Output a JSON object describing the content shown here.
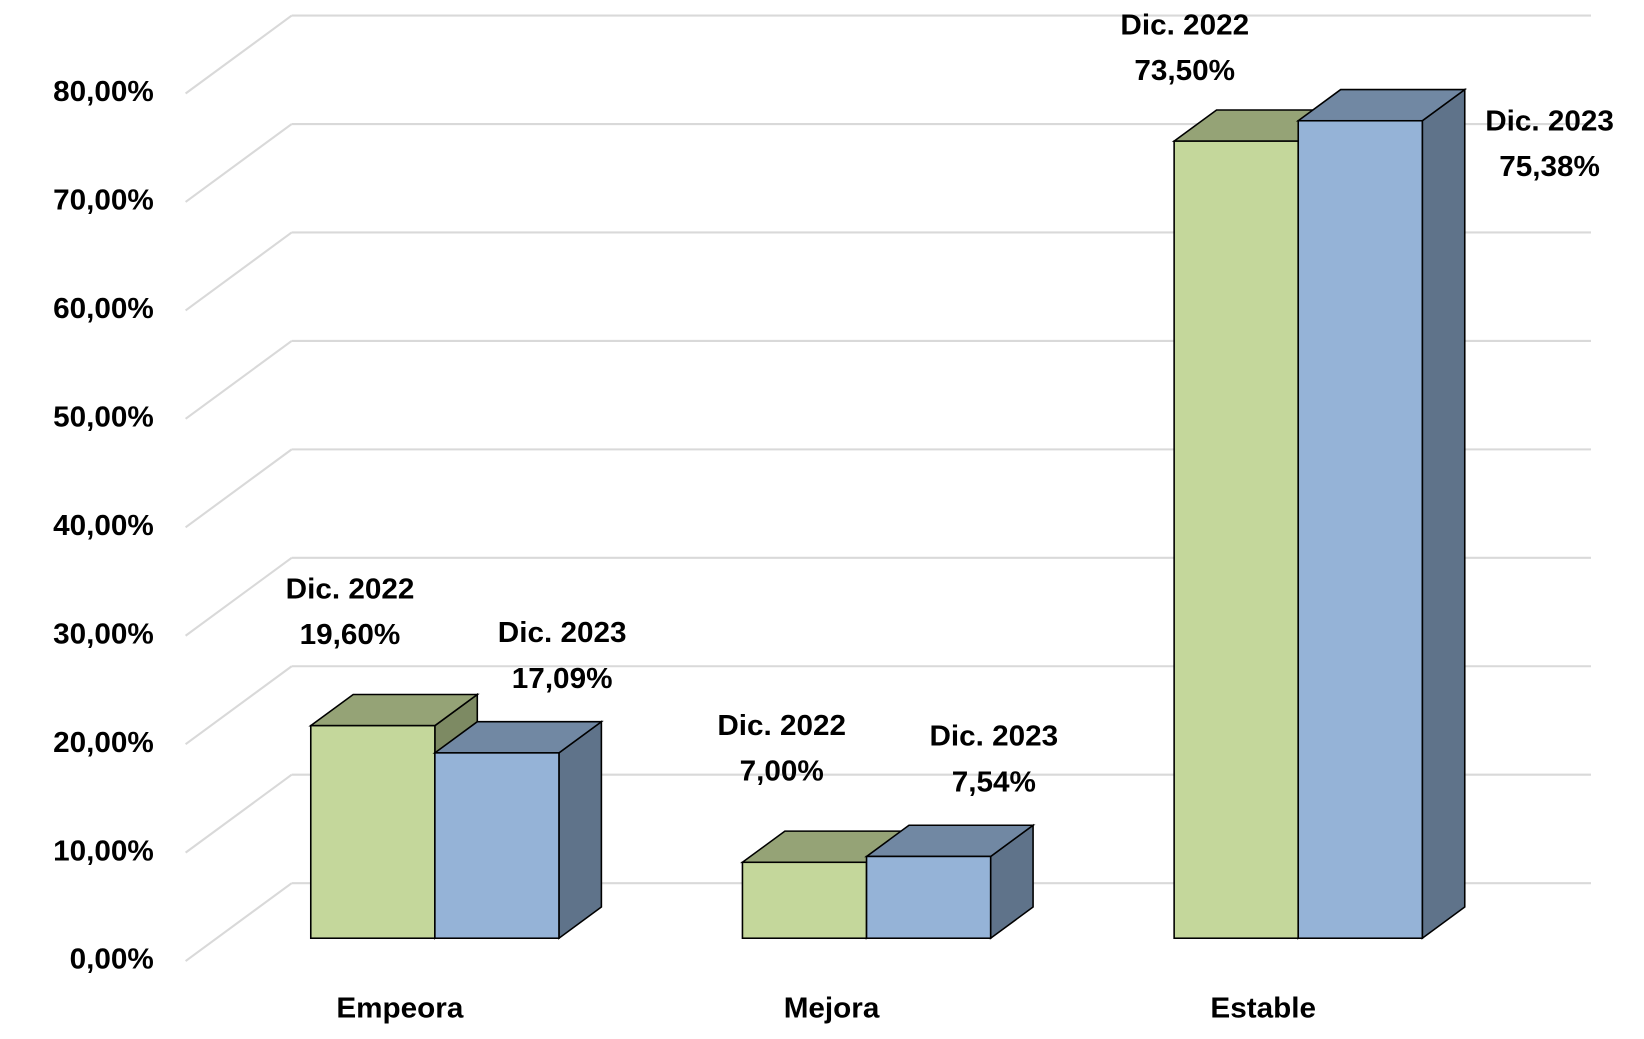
{
  "chart_data": {
    "type": "bar3d",
    "categories": [
      "Empeora",
      "Mejora",
      "Estable"
    ],
    "series": [
      {
        "name": "Dic. 2022",
        "color": "#c4d79b",
        "values": [
          19.6,
          7,
          73.5
        ],
        "value_labels": [
          "19,60%",
          "7,00%",
          "73,50%"
        ]
      },
      {
        "name": "Dic. 2023",
        "color": "#95b3d7",
        "values": [
          17.09,
          7.54,
          75.38
        ],
        "value_labels": [
          "17,09%",
          "7,54%",
          "75,38%"
        ]
      }
    ],
    "ylim": [
      0,
      80
    ],
    "yticks": [
      {
        "value": 0,
        "label": "0,00%"
      },
      {
        "value": 10,
        "label": "10,00%"
      },
      {
        "value": 20,
        "label": "20,00%"
      },
      {
        "value": 30,
        "label": "30,00%"
      },
      {
        "value": 40,
        "label": "40,00%"
      },
      {
        "value": 50,
        "label": "50,00%"
      },
      {
        "value": 60,
        "label": "60,00%"
      },
      {
        "value": 70,
        "label": "70,00%"
      },
      {
        "value": 80,
        "label": "80,00%"
      }
    ],
    "grid": true
  }
}
